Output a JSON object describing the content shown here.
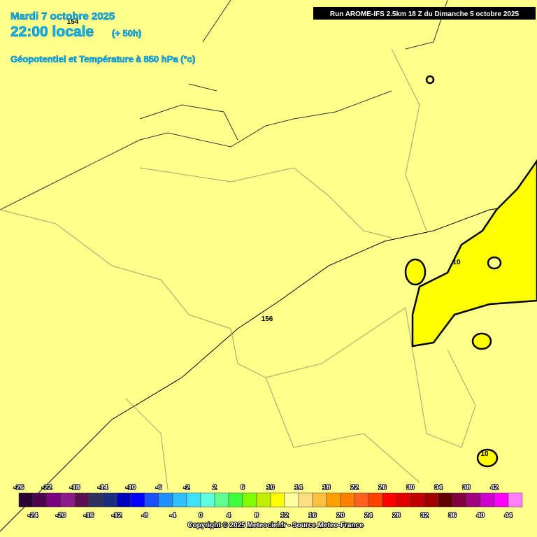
{
  "header": {
    "date": "Mardi 7 octobre 2025",
    "time": "22:00 locale",
    "lead": "(+ 50h)",
    "field": "Géopotentiel et Température à 850 hPa (°c)",
    "run": "Run AROME-IFS 2.5km 18 Z du Dimanche 5 octobre 2025"
  },
  "contour_labels": [
    154,
    156,
    10,
    10
  ],
  "legend": {
    "colors": [
      "#2a0030",
      "#4b0050",
      "#7a0080",
      "#8b1a8b",
      "#5a1050",
      "#303060",
      "#1a2e80",
      "#0000c0",
      "#0000ff",
      "#1a50ff",
      "#1e90ff",
      "#30c0ff",
      "#40e0ff",
      "#60ffe0",
      "#60ff90",
      "#40ff40",
      "#80ff00",
      "#c0f000",
      "#ffff00",
      "#ffffa0",
      "#ffe080",
      "#ffc040",
      "#ffa000",
      "#ff8000",
      "#ff6020",
      "#ff4000",
      "#ff0000",
      "#e00000",
      "#c00000",
      "#a00000",
      "#600000",
      "#800040",
      "#a00080",
      "#d000d0",
      "#ff00ff",
      "#ff80ff"
    ],
    "top_labels": [
      -26,
      -22,
      -18,
      -14,
      -10,
      -6,
      -2,
      2,
      6,
      10,
      14,
      18,
      22,
      26,
      30,
      34,
      38,
      42
    ],
    "bottom_labels": [
      -24,
      -20,
      -16,
      -12,
      -8,
      -4,
      0,
      4,
      8,
      12,
      16,
      20,
      24,
      28,
      32,
      36,
      40,
      44
    ]
  },
  "copyright": "Copyright © 2025 Meteociel.fr - Source Meteo-France"
}
